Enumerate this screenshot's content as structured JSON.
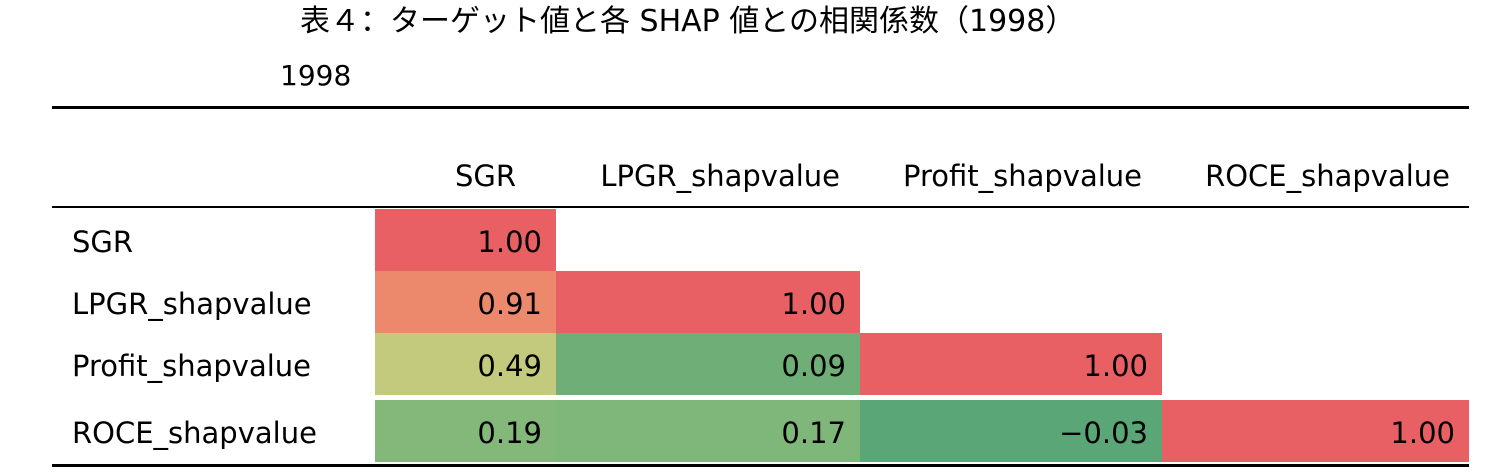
{
  "title": "表４：ターゲット値と各 SHAP 値との相関係数（1998）",
  "subtitle": "1998",
  "columns": [
    "SGR",
    "LPGR_shapvalue",
    "Profit_shapvalue",
    "ROCE_shapvalue"
  ],
  "rows": [
    {
      "label": "SGR",
      "cells": [
        {
          "value": "1.00",
          "color": "#e86063"
        }
      ]
    },
    {
      "label": "LPGR_shapvalue",
      "cells": [
        {
          "value": "0.91",
          "color": "#ec896c"
        },
        {
          "value": "1.00",
          "color": "#e86063"
        }
      ]
    },
    {
      "label": "Profit_shapvalue",
      "cells": [
        {
          "value": "0.49",
          "color": "#c3ca7d"
        },
        {
          "value": "0.09",
          "color": "#6fae77"
        },
        {
          "value": "1.00",
          "color": "#e86063"
        }
      ]
    },
    {
      "label": "ROCE_shapvalue",
      "cells": [
        {
          "value": "0.19",
          "color": "#83b87a"
        },
        {
          "value": "0.17",
          "color": "#7fb67a"
        },
        {
          "value": "−0.03",
          "color": "#5aa676"
        },
        {
          "value": "1.00",
          "color": "#e86063"
        }
      ]
    }
  ]
}
